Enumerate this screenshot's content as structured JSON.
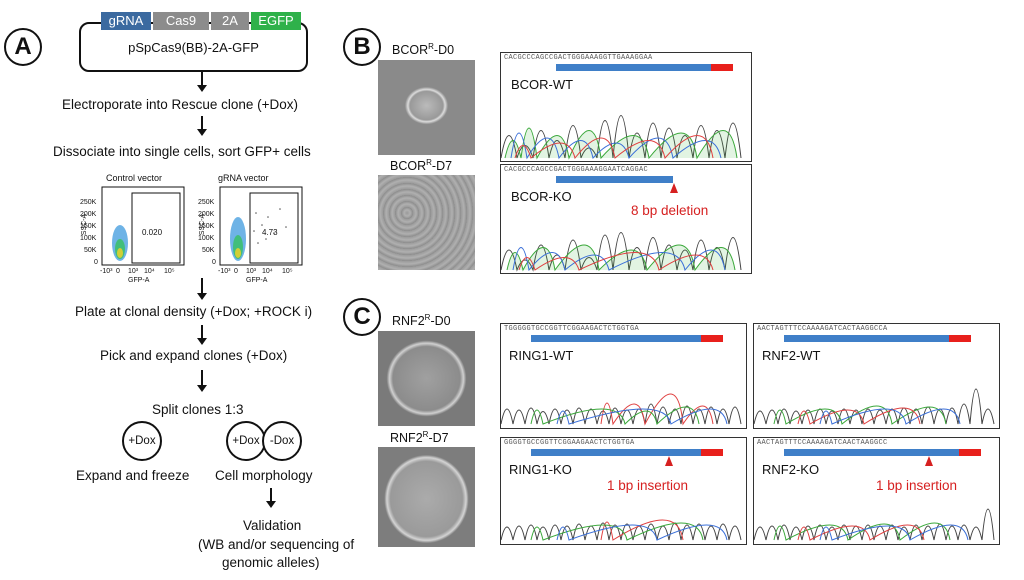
{
  "panels": {
    "A": "A",
    "B": "B",
    "C": "C"
  },
  "plasmid": {
    "segments": [
      {
        "label": "gRNA",
        "color": "#3b6aa0"
      },
      {
        "label": "Cas9",
        "color": "#8c8c8c"
      },
      {
        "label": "2A",
        "color": "#8c8c8c"
      },
      {
        "label": "EGFP",
        "color": "#2fb14a"
      }
    ],
    "name": "pSpCas9(BB)-2A-GFP"
  },
  "steps": {
    "electroporate": "Electroporate into Rescue clone (+Dox)",
    "dissociate": "Dissociate into single cells, sort GFP+ cells",
    "plate": "Plate at clonal density (+Dox; +ROCK i)",
    "pick": "Pick and expand clones (+Dox)",
    "split": "Split clones 1:3",
    "expand_freeze": "Expand and freeze",
    "morphology": "Cell morphology",
    "validation": "Validation",
    "validation_detail_1": "(WB and/or sequencing of",
    "validation_detail_2": "genomic alleles)"
  },
  "circles": {
    "plus_dox": "+Dox",
    "plus_dox2": "+Dox",
    "minus_dox": "-Dox"
  },
  "facs": {
    "control": {
      "title": "Control vector",
      "gate_value": "0.020"
    },
    "grna": {
      "title": "gRNA vector",
      "gate_value": "4.73"
    },
    "y_axis_label": "SSC-A",
    "x_axis_label": "GFP-A",
    "y_ticks": [
      "250K",
      "200K",
      "150K",
      "100K",
      "50K",
      "0"
    ],
    "x_ticks": [
      "-10³",
      "0",
      "10³",
      "10⁴",
      "10⁵"
    ]
  },
  "microscopy": {
    "bcor_d0": "BCORR-D0",
    "bcor_d7": "BCORR-D7",
    "rnf2_d0": "RNF2R-D0",
    "rnf2_d7": "RNF2R-D7"
  },
  "microscopy_parts": {
    "bcor_d0": {
      "main": "BCOR",
      "sup": "R",
      "tail": "-D0"
    },
    "bcor_d7": {
      "main": "BCOR",
      "sup": "R",
      "tail": "-D7"
    },
    "rnf2_d0": {
      "main": "RNF2",
      "sup": "R",
      "tail": "-D0"
    },
    "rnf2_d7": {
      "main": "RNF2",
      "sup": "R",
      "tail": "-D7"
    }
  },
  "traces": {
    "bcor_wt": {
      "label": "BCOR-WT",
      "seq": "CACGCCCAGCCGACTGGGAAAGGTTGAAAGGAA"
    },
    "bcor_ko": {
      "label": "BCOR-KO",
      "note": "8 bp deletion",
      "seq": "CACGCCCAGCCGACTGGGAAAGGAATCAGGAC"
    },
    "ring1_wt": {
      "label": "RING1-WT",
      "seq": "TGGGGGTGCCGGTTCGGAAGACTCTGGTGA"
    },
    "ring1_ko": {
      "label": "RING1-KO",
      "note": "1 bp insertion",
      "seq": "GGGGTGCCGGTTCGGAAGAACTCTGGTGA"
    },
    "rnf2_wt": {
      "label": "RNF2-WT",
      "seq": "AACTAGTTTCCAAAAGATCACTAAGGCCA"
    },
    "rnf2_ko": {
      "label": "RNF2-KO",
      "note": "1 bp insertion",
      "seq": "AACTAGTTTCCAAAAGATCAACTAAGGCC"
    }
  },
  "colors": {
    "blue_bar": "#3f7fc8",
    "red_bar": "#e8201c",
    "annotation_red": "#d62020"
  }
}
